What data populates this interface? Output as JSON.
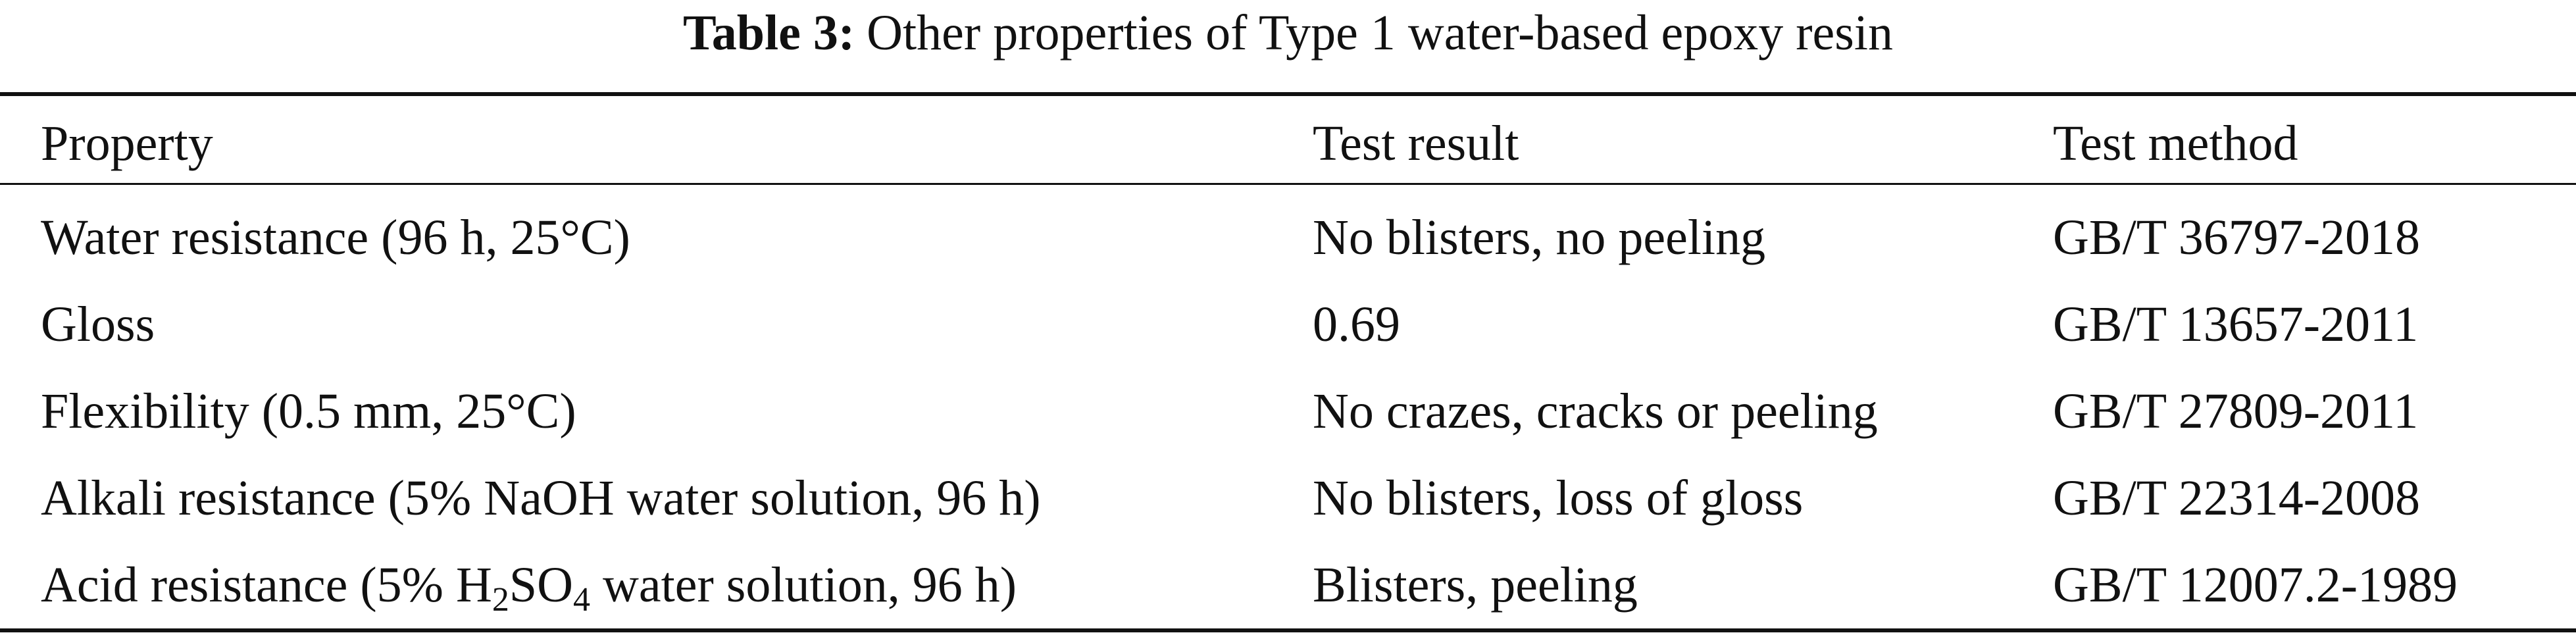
{
  "caption": {
    "label": "Table 3:",
    "text": "Other properties of Type 1 water-based epoxy resin"
  },
  "table": {
    "headers": [
      "Property",
      "Test result",
      "Test method"
    ],
    "rows": [
      {
        "property": "Water resistance (96 h, 25°C)",
        "result": "No blisters, no peeling",
        "method": "GB/T 36797-2018"
      },
      {
        "property": "Gloss",
        "result": "0.69",
        "method": "GB/T 13657-2011"
      },
      {
        "property": "Flexibility (0.5 mm, 25°C)",
        "result": "No crazes, cracks or peeling",
        "method": "GB/T 27809-2011"
      },
      {
        "property": "Alkali resistance (5% NaOH water solution, 96 h)",
        "result": "No blisters, loss of gloss",
        "method": "GB/T 22314-2008"
      },
      {
        "property_parts": {
          "before": "Acid resistance (5% H",
          "sub1": "2",
          "mid": "SO",
          "sub2": "4",
          "after": " water solution, 96 h)"
        },
        "result": "Blisters, peeling",
        "method": "GB/T 12007.2-1989"
      }
    ]
  }
}
